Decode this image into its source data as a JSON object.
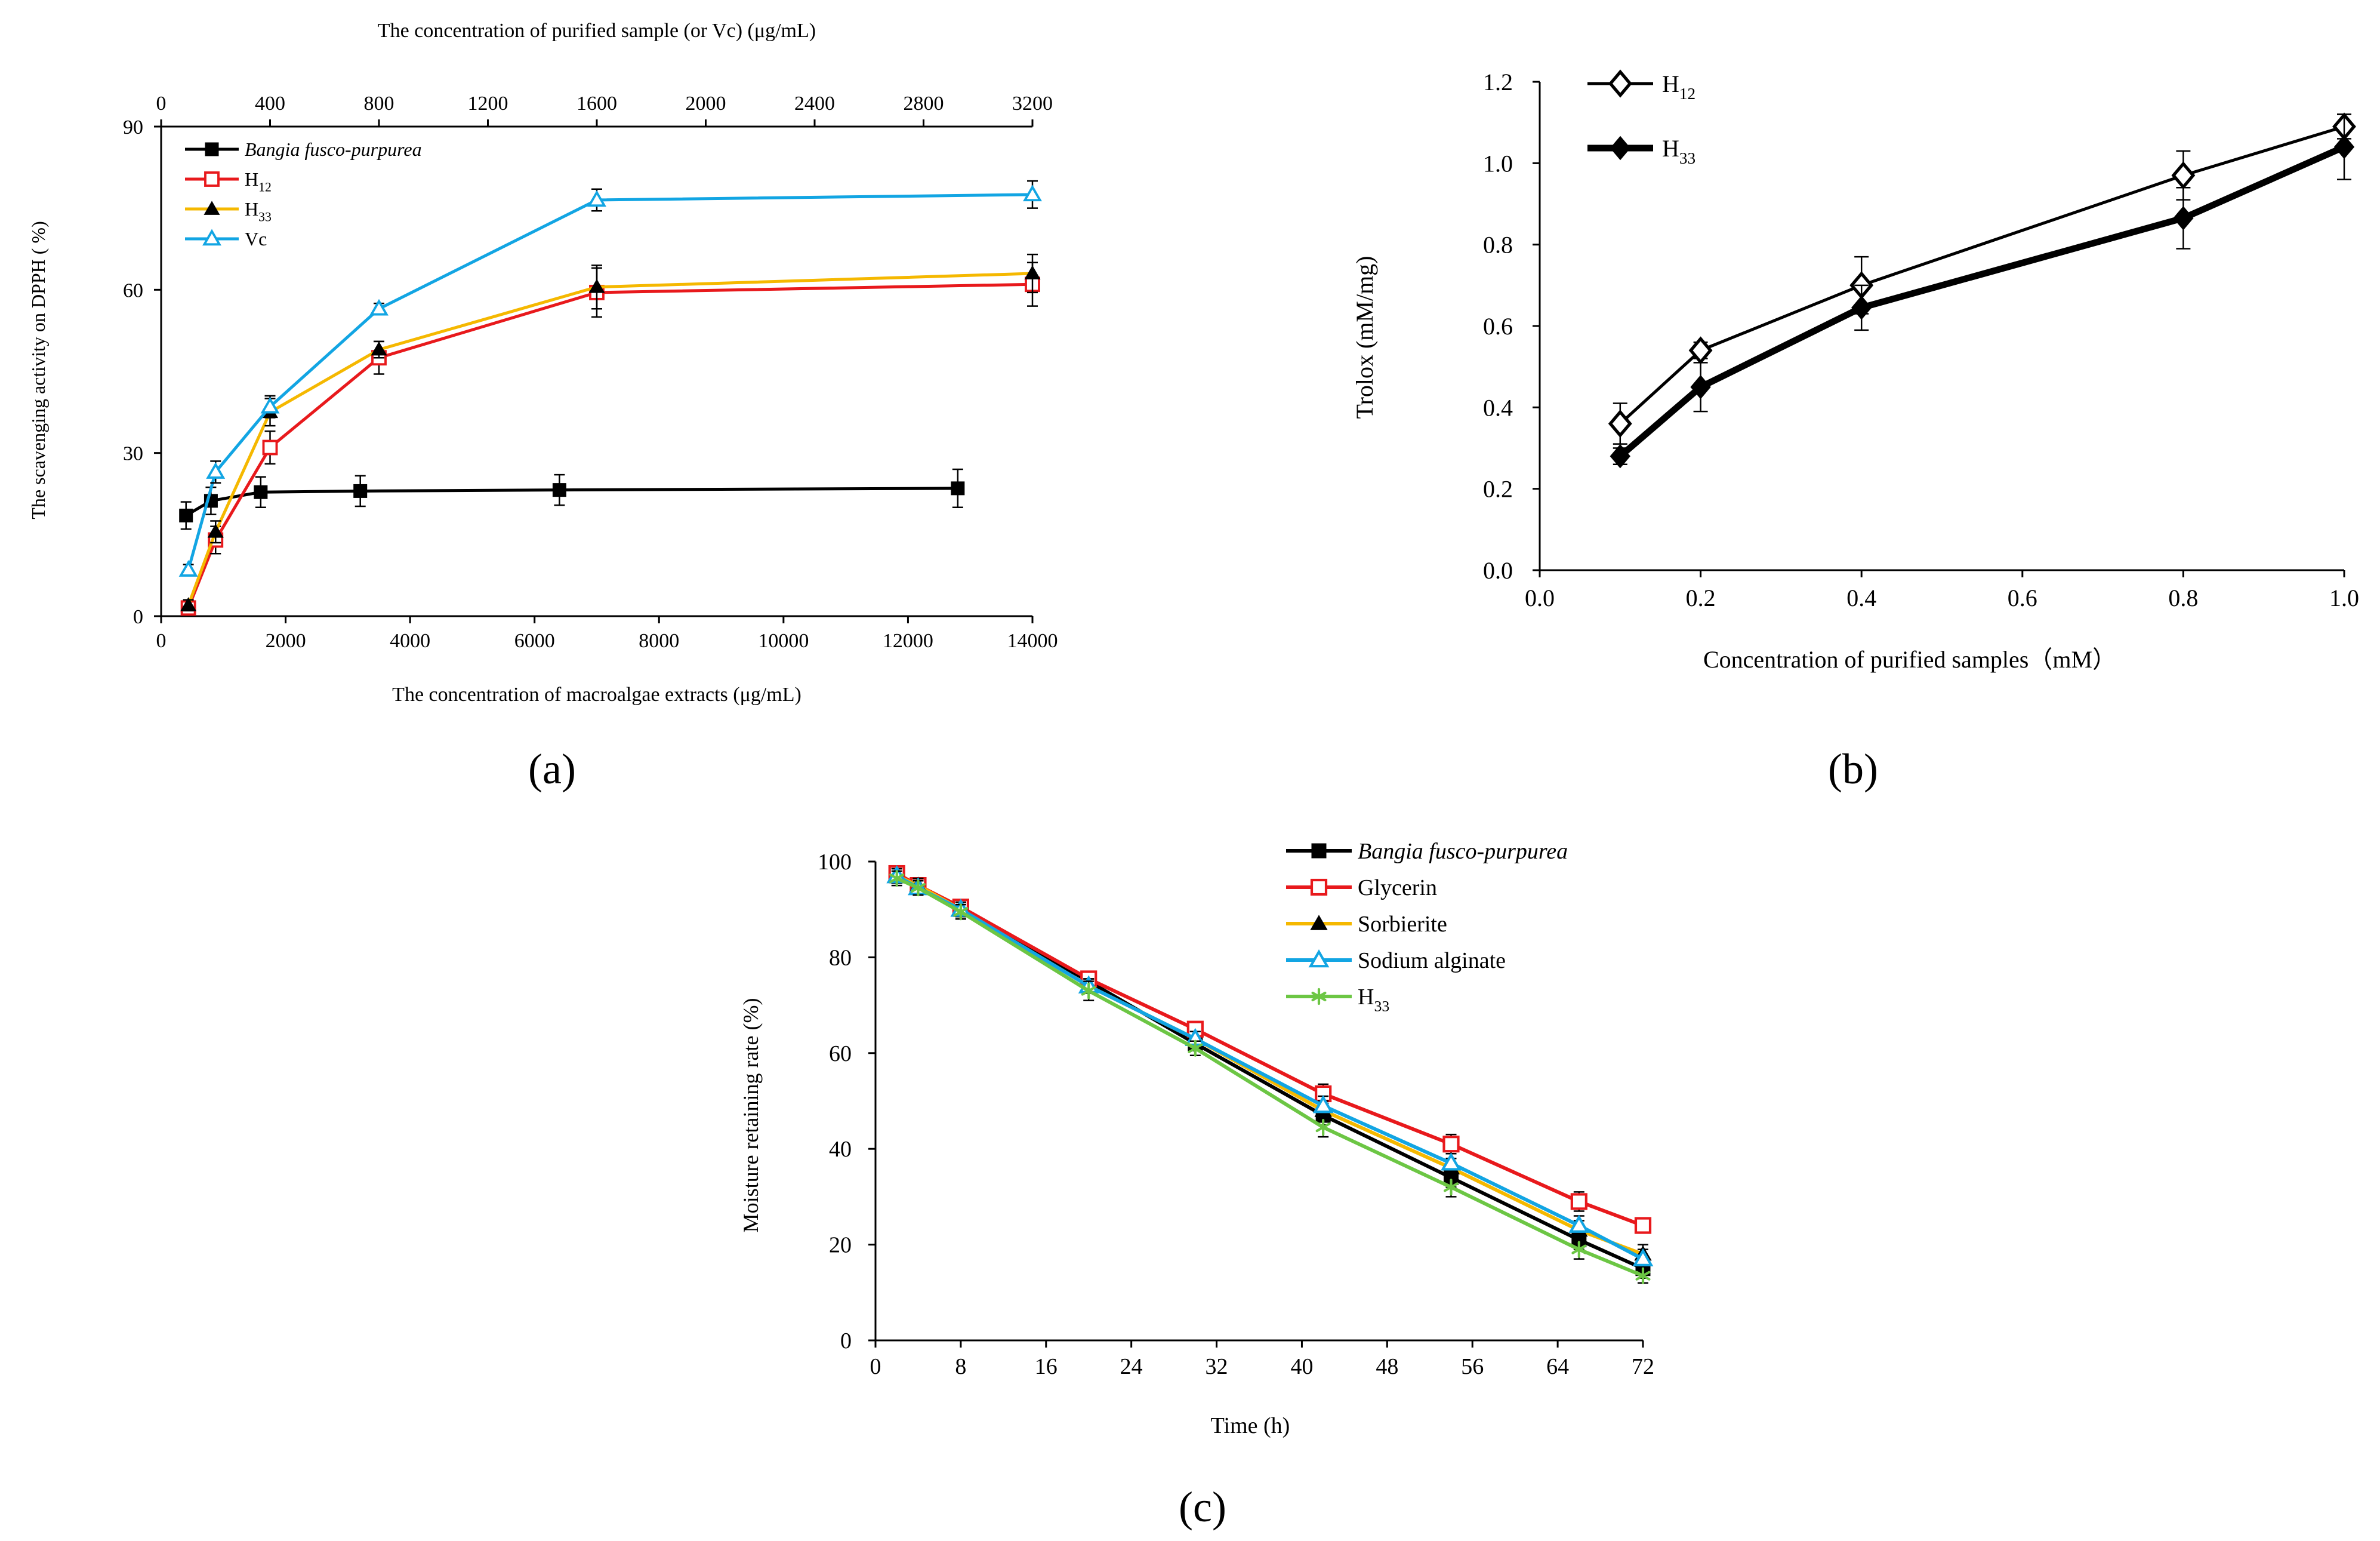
{
  "chart_data": [
    {
      "panel": "(a)",
      "type": "line",
      "title": "",
      "xlabel": "The concentration of macroalgae extracts (μg/mL)",
      "x2label": "The concentration of purified sample (or Vc) (μg/mL)",
      "ylabel": "The scavenging activity on DPPH ( %)",
      "xlim": [
        0,
        14000
      ],
      "x2lim": [
        0,
        3200
      ],
      "ylim": [
        0,
        90
      ],
      "xticks": [
        0,
        2000,
        4000,
        6000,
        8000,
        10000,
        12000,
        14000
      ],
      "x2ticks": [
        0,
        400,
        800,
        1200,
        1600,
        2000,
        2400,
        2800,
        3200
      ],
      "yticks": [
        0,
        30,
        60,
        90
      ],
      "legend_position": "top-left",
      "series": [
        {
          "name": "Bangia fusco-purpurea",
          "name_italic": true,
          "axis": "bottom",
          "color": "#000000",
          "marker": "square-filled",
          "x": [
            400,
            800,
            1600,
            3200,
            6400,
            12800
          ],
          "y": [
            18.5,
            21.2,
            22.8,
            23.0,
            23.2,
            23.5
          ],
          "err": [
            2.5,
            2.5,
            2.8,
            2.8,
            2.8,
            3.5
          ]
        },
        {
          "name": "H",
          "sub": "12",
          "axis": "top",
          "color": "#e8191c",
          "marker": "square-open",
          "x": [
            100,
            200,
            400,
            800,
            1600,
            3200
          ],
          "y": [
            1.5,
            14.0,
            31.0,
            47.5,
            59.5,
            61.0
          ],
          "err": [
            1.0,
            2.5,
            3.0,
            3.0,
            4.5,
            4.0
          ]
        },
        {
          "name": "H",
          "sub": "33",
          "axis": "top",
          "color": "#f5b800",
          "marker": "triangle-filled",
          "x": [
            100,
            200,
            400,
            800,
            1600,
            3200
          ],
          "y": [
            2.0,
            15.5,
            37.5,
            49.0,
            60.5,
            63.0
          ],
          "err": [
            1.0,
            2.0,
            2.5,
            1.5,
            4.0,
            3.5
          ]
        },
        {
          "name": "Vc",
          "axis": "top",
          "color": "#12a5e3",
          "marker": "triangle-open",
          "x": [
            100,
            200,
            400,
            800,
            1600,
            3200
          ],
          "y": [
            8.5,
            26.5,
            38.5,
            56.5,
            76.5,
            77.5
          ],
          "err": [
            1.0,
            2.0,
            2.0,
            1.0,
            2.0,
            2.5
          ]
        }
      ]
    },
    {
      "panel": "(b)",
      "type": "line",
      "title": "",
      "xlabel": "Concentration of purified samples（mM）",
      "ylabel": "Trolox (mM/mg)",
      "xlim": [
        0,
        1.0
      ],
      "ylim": [
        0,
        1.2
      ],
      "xticks": [
        "0.0",
        "0.2",
        "0.4",
        "0.6",
        "0.8",
        "1.0"
      ],
      "yticks": [
        "0.0",
        "0.2",
        "0.4",
        "0.6",
        "0.8",
        "1.0",
        "1.2"
      ],
      "legend_position": "top-left",
      "series": [
        {
          "name": "H",
          "sub": "12",
          "color": "#000000",
          "marker": "diamond-open",
          "x": [
            0.1,
            0.2,
            0.4,
            0.8,
            1.0
          ],
          "y": [
            0.36,
            0.54,
            0.7,
            0.97,
            1.09
          ],
          "err": [
            0.05,
            0.02,
            0.07,
            0.06,
            0.03
          ]
        },
        {
          "name": "H",
          "sub": "33",
          "color": "#000000",
          "marker": "diamond-filled",
          "bold": true,
          "x": [
            0.1,
            0.2,
            0.4,
            0.8,
            1.0
          ],
          "y": [
            0.28,
            0.45,
            0.645,
            0.865,
            1.04
          ],
          "err": [
            0.02,
            0.06,
            0.055,
            0.075,
            0.08
          ]
        }
      ]
    },
    {
      "panel": "(c)",
      "type": "line",
      "title": "",
      "xlabel": "Time (h)",
      "ylabel": "Moisture retaining rate (%)",
      "xlim": [
        0,
        72
      ],
      "ylim": [
        0,
        100
      ],
      "xticks": [
        0,
        8,
        16,
        24,
        32,
        40,
        48,
        56,
        64,
        72
      ],
      "yticks": [
        0,
        20,
        40,
        60,
        80,
        100
      ],
      "legend_position": "top-right",
      "series": [
        {
          "name": "Bangia fusco-purpurea",
          "name_italic": true,
          "color": "#000000",
          "marker": "square-filled",
          "x": [
            2,
            4,
            8,
            20,
            30,
            42,
            54,
            66,
            72
          ],
          "y": [
            97,
            95,
            90,
            75,
            62,
            47,
            34,
            21,
            15
          ],
          "err": [
            1.5,
            1.5,
            1.5,
            1.5,
            1.5,
            2,
            2,
            2,
            2
          ]
        },
        {
          "name": "Glycerin",
          "color": "#e8191c",
          "marker": "square-open",
          "x": [
            2,
            4,
            8,
            20,
            30,
            42,
            54,
            66,
            72
          ],
          "y": [
            97.5,
            95,
            90.5,
            75.5,
            65,
            51.5,
            41,
            29,
            24
          ],
          "err": [
            1.5,
            1.5,
            1.5,
            1.5,
            1.5,
            2,
            2,
            2,
            1.5
          ]
        },
        {
          "name": "Sorbierite",
          "color": "#f5b800",
          "marker": "triangle-filled",
          "x": [
            2,
            4,
            8,
            20,
            30,
            42,
            54,
            66,
            72
          ],
          "y": [
            97,
            95,
            90,
            74,
            63,
            48,
            36,
            23,
            18
          ],
          "err": [
            1.5,
            1.5,
            1.5,
            1.5,
            1.5,
            2,
            2,
            2,
            2
          ]
        },
        {
          "name": "Sodium alginate",
          "color": "#12a5e3",
          "marker": "triangle-open",
          "x": [
            2,
            4,
            8,
            20,
            30,
            42,
            54,
            66,
            72
          ],
          "y": [
            97,
            94.5,
            90,
            74,
            63,
            49,
            37,
            24,
            17
          ],
          "err": [
            1.5,
            1.5,
            1.5,
            1.5,
            1.5,
            2,
            2,
            2,
            2
          ]
        },
        {
          "name": "H",
          "sub": "33",
          "color": "#6cc644",
          "marker": "star",
          "x": [
            2,
            4,
            8,
            20,
            30,
            42,
            54,
            66,
            72
          ],
          "y": [
            96.5,
            94.5,
            89.5,
            73,
            61,
            44.5,
            32,
            19,
            13.5
          ],
          "err": [
            1.5,
            1.5,
            1.5,
            2,
            1.5,
            2,
            2,
            2,
            1.5
          ]
        }
      ]
    }
  ],
  "panel_labels": [
    "(a)",
    "(b)",
    "(c)"
  ]
}
